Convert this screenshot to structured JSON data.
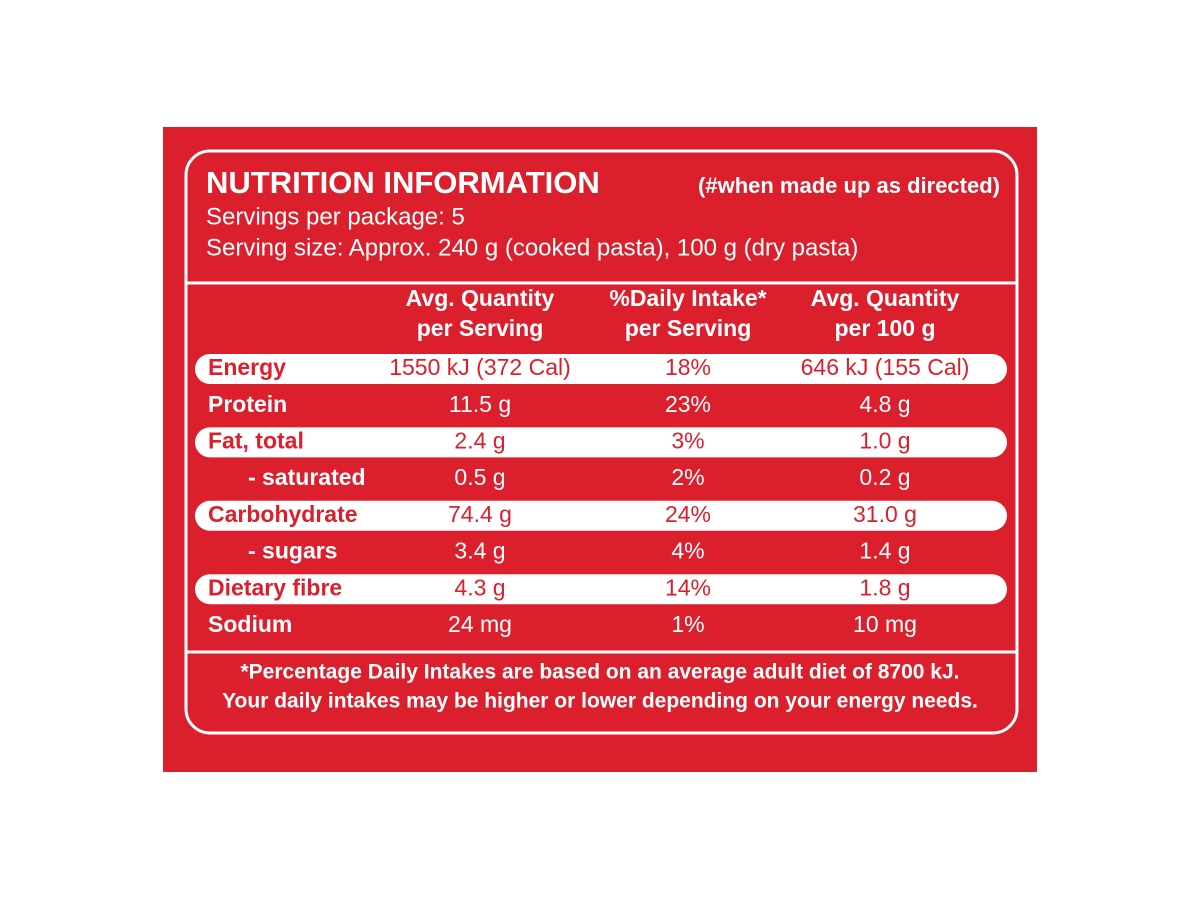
{
  "header": {
    "title": "NUTRITION INFORMATION",
    "note": "(#when made up as directed)",
    "servings": "Servings per package: 5",
    "serving_size": "Serving size: Approx. 240 g (cooked pasta), 100 g (dry pasta)"
  },
  "table": {
    "columns": [
      [
        "Avg. Quantity",
        "per Serving"
      ],
      [
        "%Daily Intake*",
        "per Serving"
      ],
      [
        "Avg. Quantity",
        "per 100 g"
      ]
    ],
    "rows": [
      [
        "Energy",
        "1550 kJ (372 Cal)",
        "18%",
        "646 kJ (155 Cal)"
      ],
      [
        "Protein",
        "11.5 g",
        "23%",
        "4.8 g"
      ],
      [
        "Fat, total",
        "2.4 g",
        "3%",
        "1.0 g"
      ],
      [
        "- saturated",
        "0.5 g",
        "2%",
        "0.2 g"
      ],
      [
        "Carbohydrate",
        "74.4 g",
        "24%",
        "31.0 g"
      ],
      [
        "- sugars",
        "3.4 g",
        "4%",
        "1.4 g"
      ],
      [
        "Dietary fibre",
        "4.3 g",
        "14%",
        "1.8 g"
      ],
      [
        "Sodium",
        "24 mg",
        "1%",
        "10 mg"
      ]
    ]
  },
  "footnote": [
    "*Percentage Daily Intakes are based on an average adult diet of 8700 kJ.",
    "Your daily intakes may be higher or lower depending on your energy needs."
  ]
}
